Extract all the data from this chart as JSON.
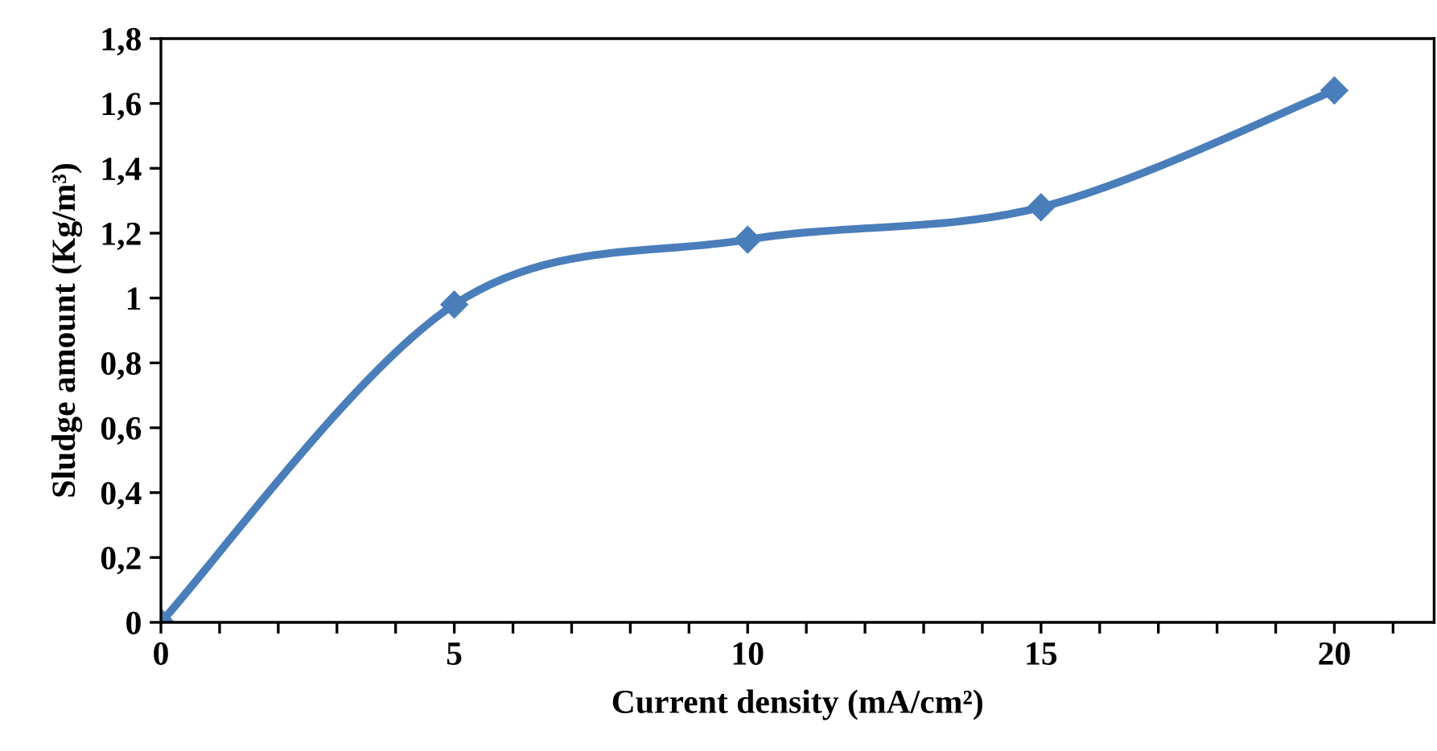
{
  "chart_data": {
    "type": "line",
    "xlabel": "Current density (mA/cm²)",
    "ylabel": "Sludge amount (Kg/m³)",
    "x": [
      0,
      5,
      10,
      15,
      20
    ],
    "series": [
      {
        "color": "#4a7ebb",
        "values": [
          0,
          0.98,
          1.18,
          1.28,
          1.64
        ]
      }
    ],
    "xlim": [
      0,
      21.7
    ],
    "xticks": [
      0,
      {
        "value": 1,
        "label": null
      },
      {
        "value": 2,
        "label": null
      },
      {
        "value": 3,
        "label": null
      },
      {
        "value": 4,
        "label": null
      },
      5,
      {
        "value": 6,
        "label": null
      },
      {
        "value": 7,
        "label": null
      },
      {
        "value": 8,
        "label": null
      },
      {
        "value": 9,
        "label": null
      },
      10,
      {
        "value": 11,
        "label": null
      },
      {
        "value": 12,
        "label": null
      },
      {
        "value": 13,
        "label": null
      },
      {
        "value": 14,
        "label": null
      },
      15,
      {
        "value": 16,
        "label": null
      },
      {
        "value": 17,
        "label": null
      },
      {
        "value": 18,
        "label": null
      },
      {
        "value": 19,
        "label": null
      },
      20,
      {
        "value": 21,
        "label": null
      }
    ],
    "ylim": [
      0,
      1.8
    ],
    "yticks": [
      0,
      {
        "value": 0.2,
        "label": "0,2"
      },
      {
        "value": 0.4,
        "label": "0,4"
      },
      {
        "value": 0.6,
        "label": "0,6"
      },
      {
        "value": 0.8,
        "label": "0,8"
      },
      1,
      {
        "value": 1.2,
        "label": "1,2"
      },
      {
        "value": 1.4,
        "label": "1,4"
      },
      {
        "value": 1.6,
        "label": "1,6"
      },
      {
        "value": 1.8,
        "label": "1,8"
      }
    ],
    "marker": "diamond",
    "line_style": "solid",
    "grid": false,
    "legend": false
  }
}
